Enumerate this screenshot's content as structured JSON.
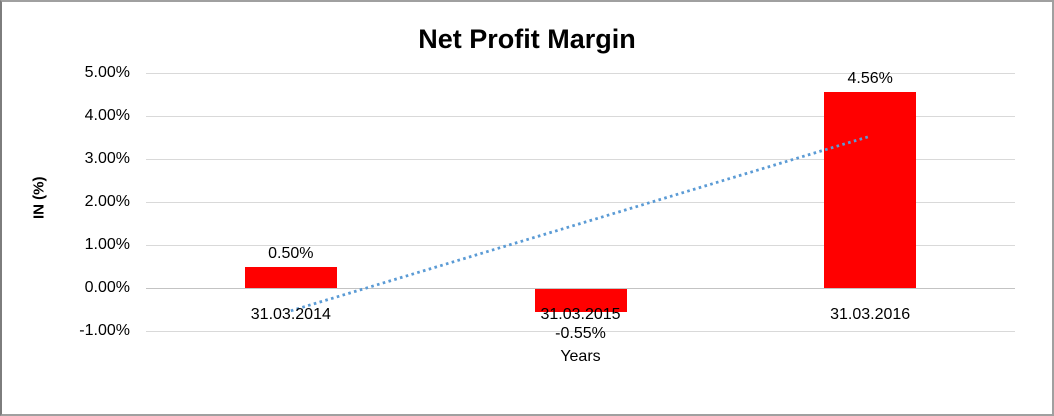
{
  "window": {
    "background": "#ffffff",
    "border_color": "#a0a0a0"
  },
  "chart_data": {
    "type": "bar",
    "title": "Net Profit Margin",
    "xlabel": "Years",
    "ylabel": "IN (%)",
    "categories": [
      "31.03.2014",
      "31.03.2015",
      "31.03.2016"
    ],
    "values": [
      0.5,
      -0.55,
      4.56
    ],
    "data_labels": [
      "0.50%",
      "-0.55%",
      "4.56%"
    ],
    "bar_color": "#ff0000",
    "ylim": [
      -1,
      5
    ],
    "yticks": {
      "values": [
        5,
        4,
        3,
        2,
        1,
        0,
        -1
      ],
      "labels": [
        "5.00%",
        "4.00%",
        "3.00%",
        "2.00%",
        "1.00%",
        "0.00%",
        "-1.00%"
      ]
    },
    "grid": true,
    "legend": "none",
    "trendline": {
      "style": "dotted",
      "color": "#5b9bd5",
      "start_category_index": 0,
      "end_category_index": 2,
      "start_value_pct": -0.53,
      "end_value_pct": 3.53
    }
  }
}
